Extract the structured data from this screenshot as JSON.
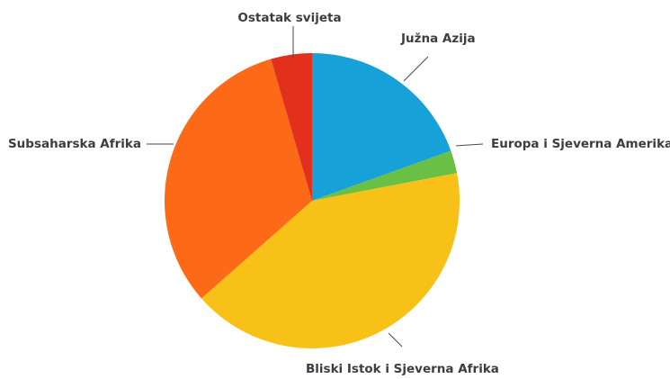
{
  "chart_data": {
    "type": "pie",
    "title": "",
    "start": "top",
    "direction": "clockwise",
    "legend": "none",
    "slices": [
      {
        "label": "Južna Azija",
        "value": 19.5,
        "color": "#16a1d9"
      },
      {
        "label": "Europa i Sjeverna Amerika",
        "value": 2.5,
        "color": "#6abf45"
      },
      {
        "label": "Bliski Istok i Sjeverna Afrika",
        "value": 41.5,
        "color": "#f7c118"
      },
      {
        "label": "Subsaharska Afrika",
        "value": 32.0,
        "color": "#fd6a17"
      },
      {
        "label": "Ostatak svijeta",
        "value": 4.5,
        "color": "#e2301c"
      }
    ]
  }
}
